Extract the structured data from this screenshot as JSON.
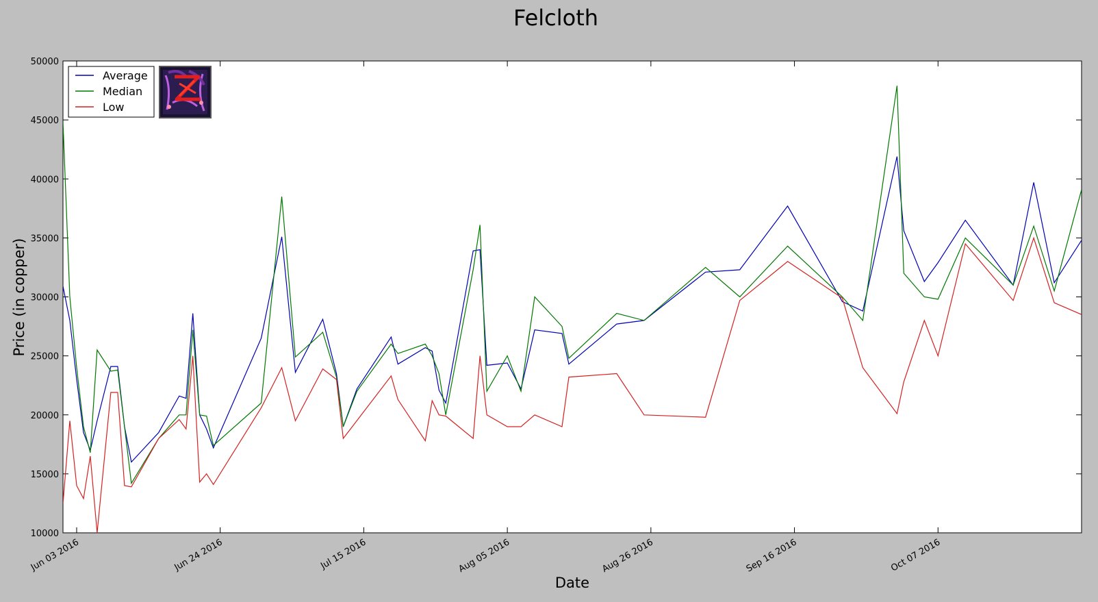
{
  "chart_data": {
    "type": "line",
    "title": "Felcloth",
    "xlabel": "Date",
    "ylabel": "Price (in copper)",
    "xlim": [
      "2016-06-01",
      "2016-10-20"
    ],
    "ylim": [
      10000,
      50000
    ],
    "yticks": [
      10000,
      15000,
      20000,
      25000,
      30000,
      35000,
      40000,
      45000,
      50000
    ],
    "xticks": [
      {
        "date": "2016-06-03",
        "label": "Jun 03 2016"
      },
      {
        "date": "2016-06-24",
        "label": "Jun 24 2016"
      },
      {
        "date": "2016-07-15",
        "label": "Jul 15 2016"
      },
      {
        "date": "2016-08-05",
        "label": "Aug 05 2016"
      },
      {
        "date": "2016-08-26",
        "label": "Aug 26 2016"
      },
      {
        "date": "2016-09-16",
        "label": "Sep 16 2016"
      },
      {
        "date": "2016-10-07",
        "label": "Oct 07 2016"
      }
    ],
    "legend": "top-left",
    "grid": false,
    "series": [
      {
        "name": "Average",
        "color": "#0000b4",
        "points": [
          [
            "2016-06-01",
            30900
          ],
          [
            "2016-06-02",
            28000
          ],
          [
            "2016-06-03",
            23000
          ],
          [
            "2016-06-04",
            18500
          ],
          [
            "2016-06-05",
            17000
          ],
          [
            "2016-06-06",
            19500
          ],
          [
            "2016-06-08",
            24100
          ],
          [
            "2016-06-09",
            24100
          ],
          [
            "2016-06-10",
            19000
          ],
          [
            "2016-06-11",
            16000
          ],
          [
            "2016-06-15",
            18500
          ],
          [
            "2016-06-18",
            21600
          ],
          [
            "2016-06-19",
            21400
          ],
          [
            "2016-06-20",
            28600
          ],
          [
            "2016-06-21",
            20000
          ],
          [
            "2016-06-22",
            18800
          ],
          [
            "2016-06-23",
            17200
          ],
          [
            "2016-06-30",
            26500
          ],
          [
            "2016-07-03",
            35100
          ],
          [
            "2016-07-05",
            23600
          ],
          [
            "2016-07-09",
            28100
          ],
          [
            "2016-07-11",
            23500
          ],
          [
            "2016-07-12",
            19000
          ],
          [
            "2016-07-14",
            22200
          ],
          [
            "2016-07-19",
            26600
          ],
          [
            "2016-07-20",
            24300
          ],
          [
            "2016-07-24",
            25700
          ],
          [
            "2016-07-25",
            25400
          ],
          [
            "2016-07-26",
            22100
          ],
          [
            "2016-07-27",
            21000
          ],
          [
            "2016-07-31",
            33900
          ],
          [
            "2016-08-01",
            34000
          ],
          [
            "2016-08-02",
            24200
          ],
          [
            "2016-08-05",
            24400
          ],
          [
            "2016-08-07",
            22200
          ],
          [
            "2016-08-09",
            27200
          ],
          [
            "2016-08-13",
            26900
          ],
          [
            "2016-08-14",
            24300
          ],
          [
            "2016-08-21",
            27700
          ],
          [
            "2016-08-25",
            28000
          ],
          [
            "2016-09-03",
            32100
          ],
          [
            "2016-09-08",
            32300
          ],
          [
            "2016-09-15",
            37700
          ],
          [
            "2016-09-23",
            29600
          ],
          [
            "2016-09-26",
            28800
          ],
          [
            "2016-10-01",
            41900
          ],
          [
            "2016-10-02",
            35600
          ],
          [
            "2016-10-05",
            31300
          ],
          [
            "2016-10-07",
            32900
          ],
          [
            "2016-10-11",
            36500
          ],
          [
            "2016-10-18",
            31000
          ],
          [
            "2016-10-21",
            39700
          ],
          [
            "2016-10-24",
            31200
          ],
          [
            "2016-10-28",
            34800
          ]
        ]
      },
      {
        "name": "Median",
        "color": "#007800",
        "points": [
          [
            "2016-06-01",
            44800
          ],
          [
            "2016-06-02",
            30000
          ],
          [
            "2016-06-03",
            24000
          ],
          [
            "2016-06-04",
            19000
          ],
          [
            "2016-06-05",
            16800
          ],
          [
            "2016-06-06",
            25500
          ],
          [
            "2016-06-08",
            23700
          ],
          [
            "2016-06-09",
            23800
          ],
          [
            "2016-06-10",
            19000
          ],
          [
            "2016-06-11",
            14200
          ],
          [
            "2016-06-15",
            18000
          ],
          [
            "2016-06-18",
            20000
          ],
          [
            "2016-06-19",
            20000
          ],
          [
            "2016-06-20",
            27200
          ],
          [
            "2016-06-21",
            20000
          ],
          [
            "2016-06-22",
            19900
          ],
          [
            "2016-06-23",
            17400
          ],
          [
            "2016-06-30",
            21000
          ],
          [
            "2016-07-03",
            38500
          ],
          [
            "2016-07-05",
            24900
          ],
          [
            "2016-07-09",
            27000
          ],
          [
            "2016-07-11",
            23200
          ],
          [
            "2016-07-12",
            19000
          ],
          [
            "2016-07-14",
            22000
          ],
          [
            "2016-07-19",
            26000
          ],
          [
            "2016-07-20",
            25200
          ],
          [
            "2016-07-24",
            26000
          ],
          [
            "2016-07-25",
            25000
          ],
          [
            "2016-07-26",
            23500
          ],
          [
            "2016-07-27",
            20000
          ],
          [
            "2016-07-31",
            32300
          ],
          [
            "2016-08-01",
            36100
          ],
          [
            "2016-08-02",
            22000
          ],
          [
            "2016-08-05",
            25000
          ],
          [
            "2016-08-07",
            22000
          ],
          [
            "2016-08-09",
            30000
          ],
          [
            "2016-08-13",
            27500
          ],
          [
            "2016-08-14",
            24800
          ],
          [
            "2016-08-21",
            28600
          ],
          [
            "2016-08-25",
            28000
          ],
          [
            "2016-09-03",
            32500
          ],
          [
            "2016-09-08",
            30000
          ],
          [
            "2016-09-15",
            34300
          ],
          [
            "2016-09-23",
            30000
          ],
          [
            "2016-09-26",
            28000
          ],
          [
            "2016-10-01",
            47900
          ],
          [
            "2016-10-02",
            32000
          ],
          [
            "2016-10-05",
            30000
          ],
          [
            "2016-10-07",
            29800
          ],
          [
            "2016-10-11",
            35000
          ],
          [
            "2016-10-18",
            31000
          ],
          [
            "2016-10-21",
            36000
          ],
          [
            "2016-10-24",
            30500
          ],
          [
            "2016-10-28",
            39100
          ]
        ]
      },
      {
        "name": "Low",
        "color": "#d42020",
        "points": [
          [
            "2016-06-01",
            12500
          ],
          [
            "2016-06-02",
            19500
          ],
          [
            "2016-06-03",
            14000
          ],
          [
            "2016-06-04",
            12900
          ],
          [
            "2016-06-05",
            16500
          ],
          [
            "2016-06-06",
            10000
          ],
          [
            "2016-06-08",
            21900
          ],
          [
            "2016-06-09",
            21900
          ],
          [
            "2016-06-10",
            14000
          ],
          [
            "2016-06-11",
            13900
          ],
          [
            "2016-06-15",
            18000
          ],
          [
            "2016-06-18",
            19600
          ],
          [
            "2016-06-19",
            18800
          ],
          [
            "2016-06-20",
            25000
          ],
          [
            "2016-06-21",
            14300
          ],
          [
            "2016-06-22",
            15000
          ],
          [
            "2016-06-23",
            14100
          ],
          [
            "2016-06-30",
            20600
          ],
          [
            "2016-07-03",
            24000
          ],
          [
            "2016-07-05",
            19500
          ],
          [
            "2016-07-09",
            23900
          ],
          [
            "2016-07-11",
            23000
          ],
          [
            "2016-07-12",
            18000
          ],
          [
            "2016-07-19",
            23300
          ],
          [
            "2016-07-20",
            21300
          ],
          [
            "2016-07-24",
            17800
          ],
          [
            "2016-07-25",
            21200
          ],
          [
            "2016-07-26",
            20000
          ],
          [
            "2016-07-27",
            19900
          ],
          [
            "2016-07-31",
            18000
          ],
          [
            "2016-08-01",
            25000
          ],
          [
            "2016-08-02",
            20000
          ],
          [
            "2016-08-05",
            19000
          ],
          [
            "2016-08-07",
            19000
          ],
          [
            "2016-08-09",
            20000
          ],
          [
            "2016-08-13",
            19000
          ],
          [
            "2016-08-14",
            23200
          ],
          [
            "2016-08-21",
            23500
          ],
          [
            "2016-08-25",
            20000
          ],
          [
            "2016-09-03",
            19800
          ],
          [
            "2016-09-08",
            29700
          ],
          [
            "2016-09-15",
            33000
          ],
          [
            "2016-09-23",
            29900
          ],
          [
            "2016-09-26",
            24000
          ],
          [
            "2016-10-01",
            20100
          ],
          [
            "2016-10-02",
            22800
          ],
          [
            "2016-10-05",
            28000
          ],
          [
            "2016-10-07",
            25000
          ],
          [
            "2016-10-11",
            34500
          ],
          [
            "2016-10-18",
            29700
          ],
          [
            "2016-10-21",
            35000
          ],
          [
            "2016-10-24",
            29500
          ],
          [
            "2016-10-28",
            28500
          ]
        ]
      }
    ],
    "legend_icon": "felcloth-item-icon"
  }
}
